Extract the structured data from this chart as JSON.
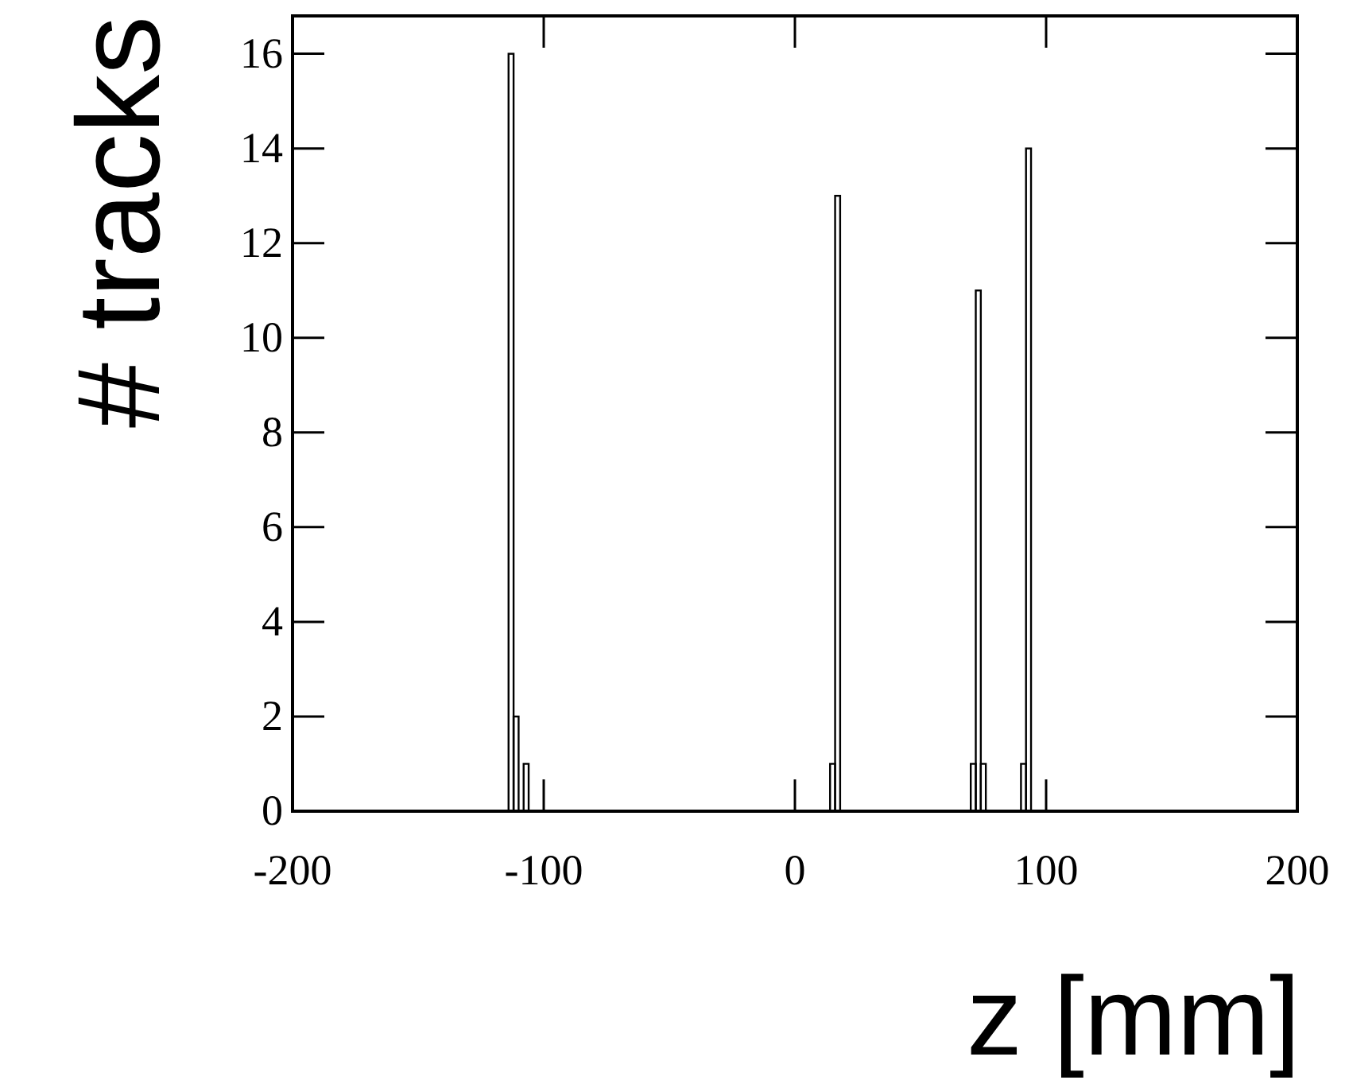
{
  "chart_data": {
    "type": "histogram",
    "xlabel": "z [mm]",
    "ylabel": "# tracks",
    "color": "#000000",
    "bins": [
      -200,
      -198,
      -196,
      -194,
      -192,
      -190,
      -188,
      -186,
      -184,
      -182,
      -180,
      -178,
      -176,
      -174,
      -172,
      -170,
      -168,
      -166,
      -164,
      -162,
      -160,
      -158,
      -156,
      -154,
      -152,
      -150,
      -148,
      -146,
      -144,
      -142,
      -140,
      -138,
      -136,
      -134,
      -132,
      -130,
      -128,
      -126,
      -124,
      -122,
      -120,
      -118,
      -116,
      -114,
      -112,
      -110,
      -108,
      -106,
      -104,
      -102,
      -100,
      -98,
      -96,
      -94,
      -92,
      -90,
      -88,
      -86,
      -84,
      -82,
      -80,
      -78,
      -76,
      -74,
      -72,
      -70,
      -68,
      -66,
      -64,
      -62,
      -60,
      -58,
      -56,
      -54,
      -52,
      -50,
      -48,
      -46,
      -44,
      -42,
      -40,
      -38,
      -36,
      -34,
      -32,
      -30,
      -28,
      -26,
      -24,
      -22,
      -20,
      -18,
      -16,
      -14,
      -12,
      -10,
      -8,
      -6,
      -4,
      -2,
      0,
      2,
      4,
      6,
      8,
      10,
      12,
      14,
      16,
      18,
      20,
      22,
      24,
      26,
      28,
      30,
      32,
      34,
      36,
      38,
      40,
      42,
      44,
      46,
      48,
      50,
      52,
      54,
      56,
      58,
      60,
      62,
      64,
      66,
      68,
      70,
      72,
      74,
      76,
      78,
      80,
      82,
      84,
      86,
      88,
      90,
      92,
      94,
      96,
      98,
      100,
      102,
      104,
      106,
      108,
      110,
      112,
      114,
      116,
      118,
      120,
      122,
      124,
      126,
      128,
      130,
      132,
      134,
      136,
      138,
      140,
      142,
      144,
      146,
      148,
      150,
      152,
      154,
      156,
      158,
      160,
      162,
      164,
      166,
      168,
      170,
      172,
      174,
      176,
      178,
      180,
      182,
      184,
      186,
      188,
      190,
      192,
      194,
      196,
      198,
      200
    ],
    "values": [
      0,
      0,
      0,
      0,
      0,
      0,
      0,
      0,
      0,
      0,
      0,
      0,
      0,
      0,
      0,
      0,
      0,
      0,
      0,
      0,
      0,
      0,
      0,
      0,
      0,
      0,
      0,
      0,
      0,
      0,
      0,
      0,
      0,
      0,
      0,
      0,
      0,
      0,
      0,
      0,
      0,
      0,
      0,
      16,
      2,
      0,
      1,
      0,
      0,
      0,
      0,
      0,
      0,
      0,
      0,
      0,
      0,
      0,
      0,
      0,
      0,
      0,
      0,
      0,
      0,
      0,
      0,
      0,
      0,
      0,
      0,
      0,
      0,
      0,
      0,
      0,
      0,
      0,
      0,
      0,
      0,
      0,
      0,
      0,
      0,
      0,
      0,
      0,
      0,
      0,
      0,
      0,
      0,
      0,
      0,
      0,
      0,
      0,
      0,
      0,
      0,
      0,
      0,
      0,
      0,
      0,
      0,
      1,
      13,
      0,
      0,
      0,
      0,
      0,
      0,
      0,
      0,
      0,
      0,
      0,
      0,
      0,
      0,
      0,
      0,
      0,
      0,
      0,
      0,
      0,
      0,
      0,
      0,
      0,
      0,
      1,
      11,
      1,
      0,
      0,
      0,
      0,
      0,
      0,
      0,
      1,
      14,
      0,
      0,
      0,
      0,
      0,
      0,
      0,
      0,
      0,
      0,
      0,
      0,
      0,
      0,
      0,
      0,
      0,
      0,
      0,
      0,
      0,
      0,
      0,
      0,
      0,
      0,
      0,
      0,
      0,
      0,
      0,
      0,
      0,
      0,
      0,
      0,
      0,
      0,
      0,
      0,
      0,
      0,
      0,
      0,
      0,
      0,
      0,
      0,
      0,
      0,
      0,
      0,
      0
    ],
    "xlim": [
      -200,
      200
    ],
    "ylim": [
      0,
      16.8
    ],
    "xticks": [
      -200,
      -100,
      0,
      100,
      200
    ],
    "yticks": [
      0,
      2,
      4,
      6,
      8,
      10,
      12,
      14,
      16
    ],
    "grid": false
  }
}
